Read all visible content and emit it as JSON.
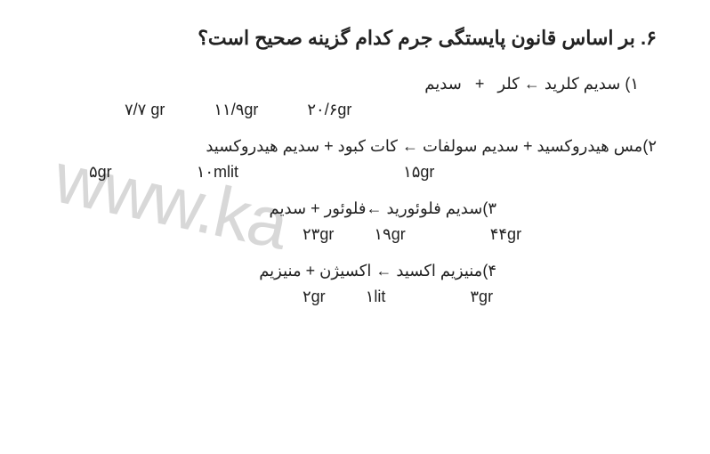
{
  "watermark": "www.ka",
  "question": {
    "number": "۶.",
    "text": "بر اساس قانون پایستگی جرم کدام گزینه صحیح است؟"
  },
  "options": [
    {
      "num": "۱)",
      "equation_parts": {
        "product": "سدیم کلرید",
        "reactant1": "کلر",
        "reactant2": "سدیم"
      },
      "values": {
        "v1": "۷/۷ gr",
        "v2": "۱۱/۹gr",
        "v3": "۲۰/۶gr"
      }
    },
    {
      "num": "۲)",
      "equation_parts": {
        "reactant1": "مس هیدروکسید",
        "reactant2": "سدیم سولفات",
        "product1": "کات کبود",
        "product2": "سدیم هیدروکسید"
      },
      "values": {
        "v1": "۵gr",
        "v2": "۱۰mlit",
        "v3": "۱۵gr"
      }
    },
    {
      "num": "۳)",
      "equation_parts": {
        "product": "سدیم فلوئورید",
        "reactant1": "فلوئور",
        "reactant2": "سدیم"
      },
      "values": {
        "v1": "۲۳gr",
        "v2": "۱۹gr",
        "v3": "۴۴gr"
      }
    },
    {
      "num": "۴)",
      "equation_parts": {
        "product": "منیزیم اکسید",
        "reactant1": "اکسیژن",
        "reactant2": "منیزیم"
      },
      "values": {
        "v1": "۲gr",
        "v2": "۱lit",
        "v3": "۳gr"
      }
    }
  ]
}
